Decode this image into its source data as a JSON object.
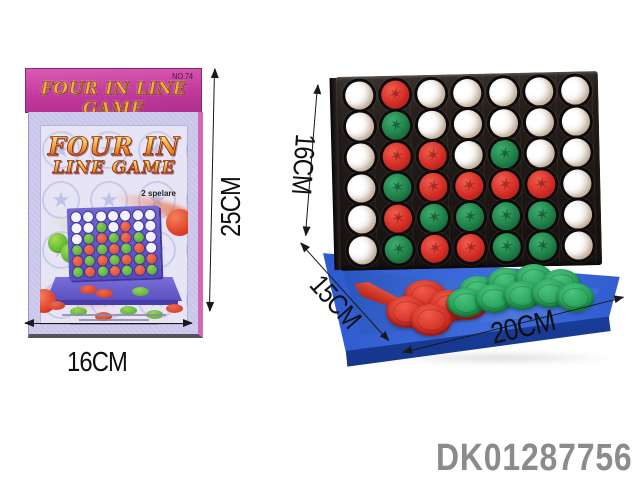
{
  "product_code": "DK01287756",
  "box": {
    "flap": {
      "title": "FOUR IN LINE GAME",
      "number": "NO.74"
    },
    "face": {
      "title_line1": "FOUR IN",
      "title_line2": "LINE GAME",
      "players": "2 spelare"
    },
    "illustration_board": [
      [
        "",
        "",
        "",
        "",
        "",
        "",
        ""
      ],
      [
        "",
        "",
        "G",
        "",
        "R",
        "",
        ""
      ],
      [
        "",
        "G",
        "R",
        "G",
        "R",
        "G",
        ""
      ],
      [
        "G",
        "R",
        "G",
        "R",
        "G",
        "R",
        ""
      ],
      [
        "R",
        "G",
        "R",
        "G",
        "R",
        "G",
        "R"
      ],
      [
        "G",
        "R",
        "G",
        "R",
        "G",
        "R",
        "G"
      ]
    ]
  },
  "dimensions": {
    "box_width": "16CM",
    "box_height": "25CM",
    "grid_height": "16CM",
    "tray_depth": "15CM",
    "tray_width": "20CM"
  },
  "game": {
    "board_cols": 7,
    "board_rows": 6,
    "board": [
      [
        "",
        "R",
        "",
        "",
        "",
        "",
        ""
      ],
      [
        "",
        "G",
        "",
        "",
        "",
        "",
        ""
      ],
      [
        "",
        "R",
        "R",
        "",
        "G",
        "",
        ""
      ],
      [
        "",
        "G",
        "R",
        "R",
        "R",
        "R",
        ""
      ],
      [
        "",
        "R",
        "G",
        "G",
        "G",
        "G",
        ""
      ],
      [
        "",
        "G",
        "R",
        "R",
        "G",
        "G",
        ""
      ]
    ],
    "tray": {
      "red_discs": 5,
      "green_discs": 9
    }
  },
  "colors": {
    "disc_red": "#d42c24",
    "disc_green": "#1e8048",
    "tray_green": "#27a35b",
    "tray_blue": "#2c59cc",
    "grid_dark": "#241d19",
    "flap_magenta": "#c23a9e",
    "box_lavender": "#c9c6ea",
    "title_gold": "#ee9c34",
    "code_grey": "#8b8b8b"
  }
}
